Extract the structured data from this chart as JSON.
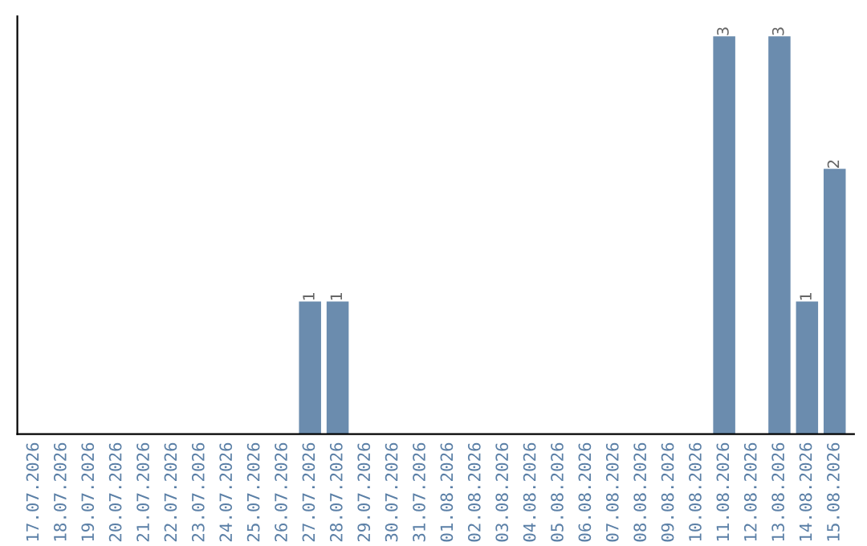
{
  "chart_data": {
    "type": "bar",
    "categories": [
      "17.07.2026",
      "18.07.2026",
      "19.07.2026",
      "20.07.2026",
      "21.07.2026",
      "22.07.2026",
      "23.07.2026",
      "24.07.2026",
      "25.07.2026",
      "26.07.2026",
      "27.07.2026",
      "28.07.2026",
      "29.07.2026",
      "30.07.2026",
      "31.07.2026",
      "01.08.2026",
      "02.08.2026",
      "03.08.2026",
      "04.08.2026",
      "05.08.2026",
      "06.08.2026",
      "07.08.2026",
      "08.08.2026",
      "09.08.2026",
      "10.08.2026",
      "11.08.2026",
      "12.08.2026",
      "13.08.2026",
      "14.08.2026",
      "15.08.2026"
    ],
    "values": [
      0,
      0,
      0,
      0,
      0,
      0,
      0,
      0,
      0,
      0,
      1,
      1,
      0,
      0,
      0,
      0,
      0,
      0,
      0,
      0,
      0,
      0,
      0,
      0,
      0,
      3,
      0,
      3,
      1,
      2
    ],
    "value_labels": [
      null,
      null,
      null,
      null,
      null,
      null,
      null,
      null,
      null,
      null,
      "1",
      "1",
      null,
      null,
      null,
      null,
      null,
      null,
      null,
      null,
      null,
      null,
      null,
      null,
      null,
      "3",
      null,
      "3",
      "1",
      "2"
    ],
    "color": "#6b8cae",
    "tick_labels": "x",
    "grid": false,
    "legend": false
  }
}
